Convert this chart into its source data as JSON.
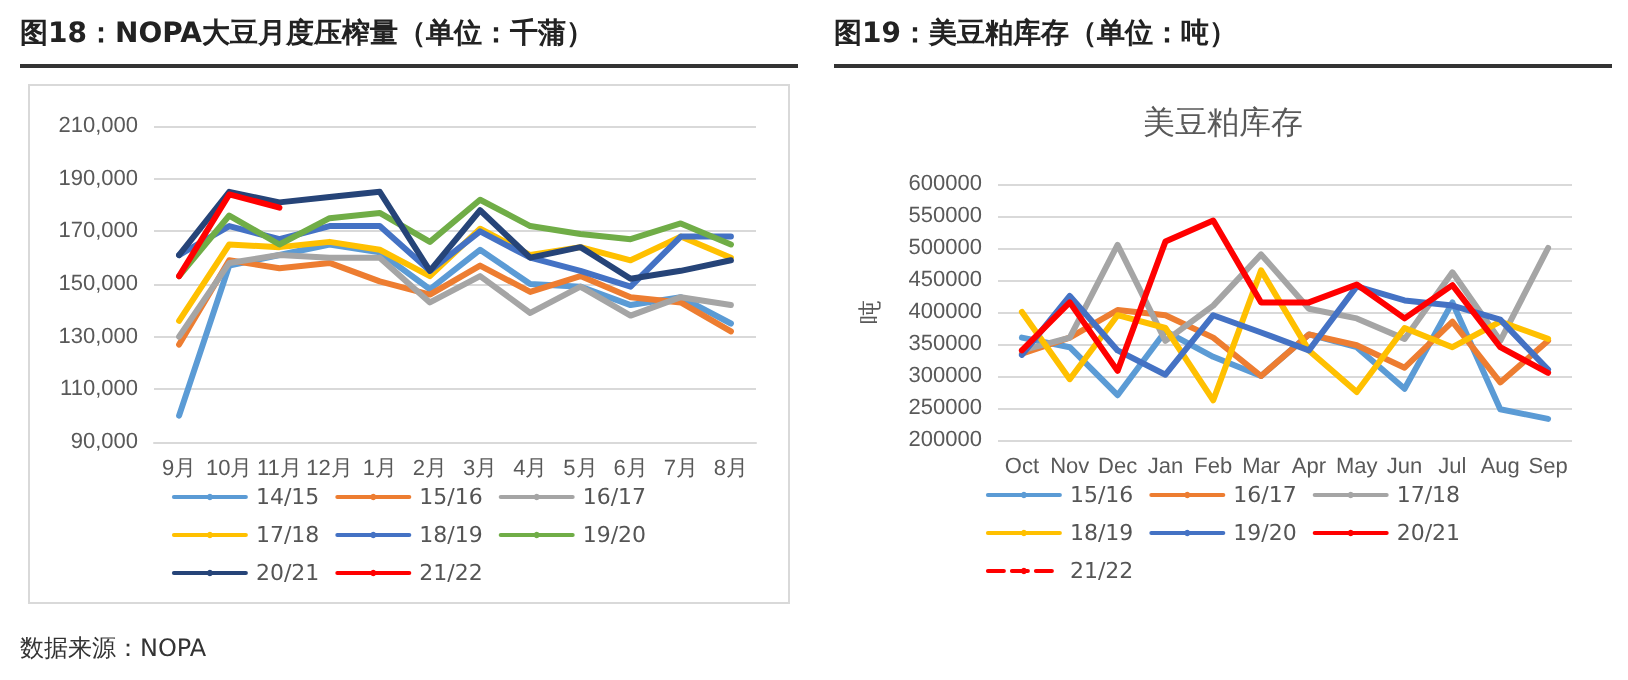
{
  "chart_data": [
    {
      "type": "line",
      "title": "图18：NOPA大豆月度压榨量（单位：千蒲）",
      "categories": [
        "9月",
        "10月",
        "11月",
        "12月",
        "1月",
        "2月",
        "3月",
        "4月",
        "5月",
        "6月",
        "7月",
        "8月"
      ],
      "ylim": [
        90000,
        210000
      ],
      "yticks": [
        {
          "value": 90000,
          "label": "90,000"
        },
        {
          "value": 110000,
          "label": "110,000"
        },
        {
          "value": 130000,
          "label": "130,000"
        },
        {
          "value": 150000,
          "label": "150,000"
        },
        {
          "value": 170000,
          "label": "170,000"
        },
        {
          "value": 190000,
          "label": "190,000"
        },
        {
          "value": 210000,
          "label": "210,000"
        }
      ],
      "grid": "y",
      "legend": "bottom",
      "marker": "none",
      "line_style": "solid",
      "annotations": [
        "数据来源：NOPA"
      ],
      "series": [
        {
          "name": "14/15",
          "color": "#5b9bd5",
          "values": [
            100000,
            157000,
            161000,
            165000,
            162000,
            148000,
            163000,
            150000,
            149000,
            142000,
            145000,
            135000
          ]
        },
        {
          "name": "15/16",
          "color": "#ed7d31",
          "values": [
            127000,
            159000,
            156000,
            158000,
            151000,
            146000,
            157000,
            147000,
            153000,
            145000,
            143000,
            132000
          ]
        },
        {
          "name": "16/17",
          "color": "#a5a5a5",
          "values": [
            130000,
            158000,
            161000,
            160000,
            160000,
            143000,
            153000,
            139000,
            149000,
            138000,
            145000,
            142000
          ]
        },
        {
          "name": "17/18",
          "color": "#ffc000",
          "values": [
            136000,
            165000,
            164000,
            166000,
            163000,
            153000,
            171000,
            161000,
            164000,
            159000,
            168000,
            160000
          ]
        },
        {
          "name": "18/19",
          "color": "#4472c4",
          "values": [
            161000,
            172000,
            167000,
            172000,
            172000,
            155000,
            170000,
            160000,
            155000,
            149000,
            168000,
            168000
          ]
        },
        {
          "name": "19/20",
          "color": "#70ad47",
          "values": [
            153000,
            176000,
            165000,
            175000,
            177000,
            166000,
            182000,
            172000,
            169000,
            167000,
            173000,
            165000
          ]
        },
        {
          "name": "20/21",
          "color": "#264478",
          "values": [
            161000,
            185000,
            181000,
            183000,
            185000,
            155000,
            178000,
            160000,
            164000,
            152000,
            155000,
            159000
          ]
        },
        {
          "name": "21/22",
          "color": "#ff0000",
          "values": [
            153000,
            184000,
            179000,
            null,
            null,
            null,
            null,
            null,
            null,
            null,
            null,
            null
          ]
        }
      ]
    },
    {
      "type": "line",
      "title": "图19：美豆粕库存（单位：吨）",
      "subtitle": "美豆粕库存",
      "ylabel": "吨",
      "categories": [
        "Oct",
        "Nov",
        "Dec",
        "Jan",
        "Feb",
        "Mar",
        "Apr",
        "May",
        "Jun",
        "Jul",
        "Aug",
        "Sep"
      ],
      "ylim": [
        200000,
        600000
      ],
      "yticks": [
        200000,
        250000,
        300000,
        350000,
        400000,
        450000,
        500000,
        550000,
        600000
      ],
      "grid": "y",
      "legend": "bottom",
      "marker": "none",
      "line_style": "solid",
      "series": [
        {
          "name": "15/16",
          "color": "#5b9bd5",
          "values": [
            360000,
            345000,
            270000,
            370000,
            330000,
            300000,
            365000,
            345000,
            280000,
            415000,
            248000,
            233000
          ]
        },
        {
          "name": "16/17",
          "color": "#ed7d31",
          "values": [
            335000,
            360000,
            403000,
            395000,
            360000,
            300000,
            365000,
            348000,
            313000,
            385000,
            290000,
            355000
          ]
        },
        {
          "name": "17/18",
          "color": "#a5a5a5",
          "values": [
            340000,
            360000,
            505000,
            355000,
            410000,
            490000,
            405000,
            390000,
            358000,
            462000,
            355000,
            500000
          ]
        },
        {
          "name": "18/19",
          "color": "#ffc000",
          "values": [
            400000,
            295000,
            395000,
            375000,
            262000,
            465000,
            340000,
            275000,
            375000,
            345000,
            385000,
            358000
          ]
        },
        {
          "name": "19/20",
          "color": "#4472c4",
          "values": [
            333000,
            425000,
            340000,
            302000,
            395000,
            368000,
            340000,
            440000,
            418000,
            410000,
            388000,
            310000
          ]
        },
        {
          "name": "20/21",
          "color": "#ff0000",
          "values": [
            340000,
            415000,
            308000,
            510000,
            543000,
            415000,
            415000,
            443000,
            390000,
            442000,
            345000,
            305000
          ]
        },
        {
          "name": "21/22",
          "color": "#ff0000",
          "line_style": "dashed",
          "values": [
            null,
            null,
            null,
            null,
            null,
            null,
            null,
            null,
            null,
            null,
            null,
            null
          ]
        }
      ]
    }
  ]
}
